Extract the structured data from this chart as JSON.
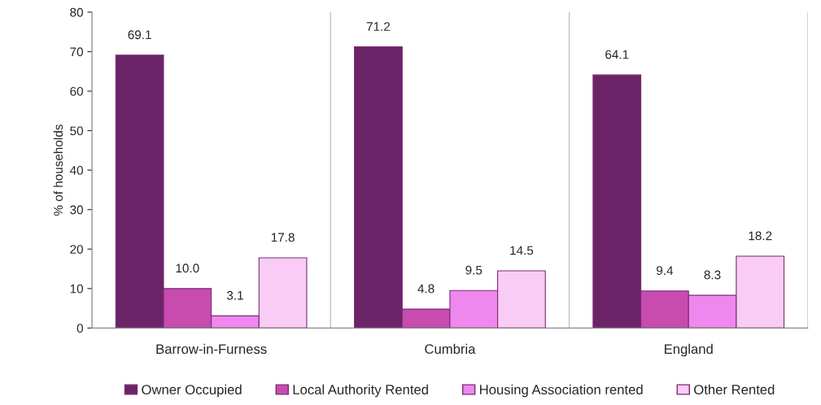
{
  "chart_data": {
    "type": "bar",
    "ylabel": "% of households",
    "categories": [
      "Barrow-in-Furness",
      "Cumbria",
      "England"
    ],
    "series": [
      {
        "name": "Owner Occupied",
        "color": "#6b2468",
        "values": [
          69.1,
          71.2,
          64.1
        ],
        "value_labels": [
          "69.1",
          "71.2",
          "64.1"
        ]
      },
      {
        "name": "Local Authority Rented",
        "color": "#c84bb0",
        "values": [
          10.0,
          4.8,
          9.4
        ],
        "value_labels": [
          "10.0",
          "4.8",
          "9.4"
        ]
      },
      {
        "name": "Housing Association rented",
        "color": "#ee88ee",
        "values": [
          3.1,
          9.5,
          8.3
        ],
        "value_labels": [
          "3.1",
          "9.5",
          "8.3"
        ]
      },
      {
        "name": "Other Rented",
        "color": "#f8ccf4",
        "values": [
          17.8,
          14.5,
          18.2
        ],
        "value_labels": [
          "17.8",
          "14.5",
          "18.2"
        ]
      }
    ],
    "ylim": [
      0,
      80
    ],
    "yticks": [
      0,
      10,
      20,
      30,
      40,
      50,
      60,
      70,
      80
    ],
    "grid": "x",
    "legend": "bottom"
  }
}
